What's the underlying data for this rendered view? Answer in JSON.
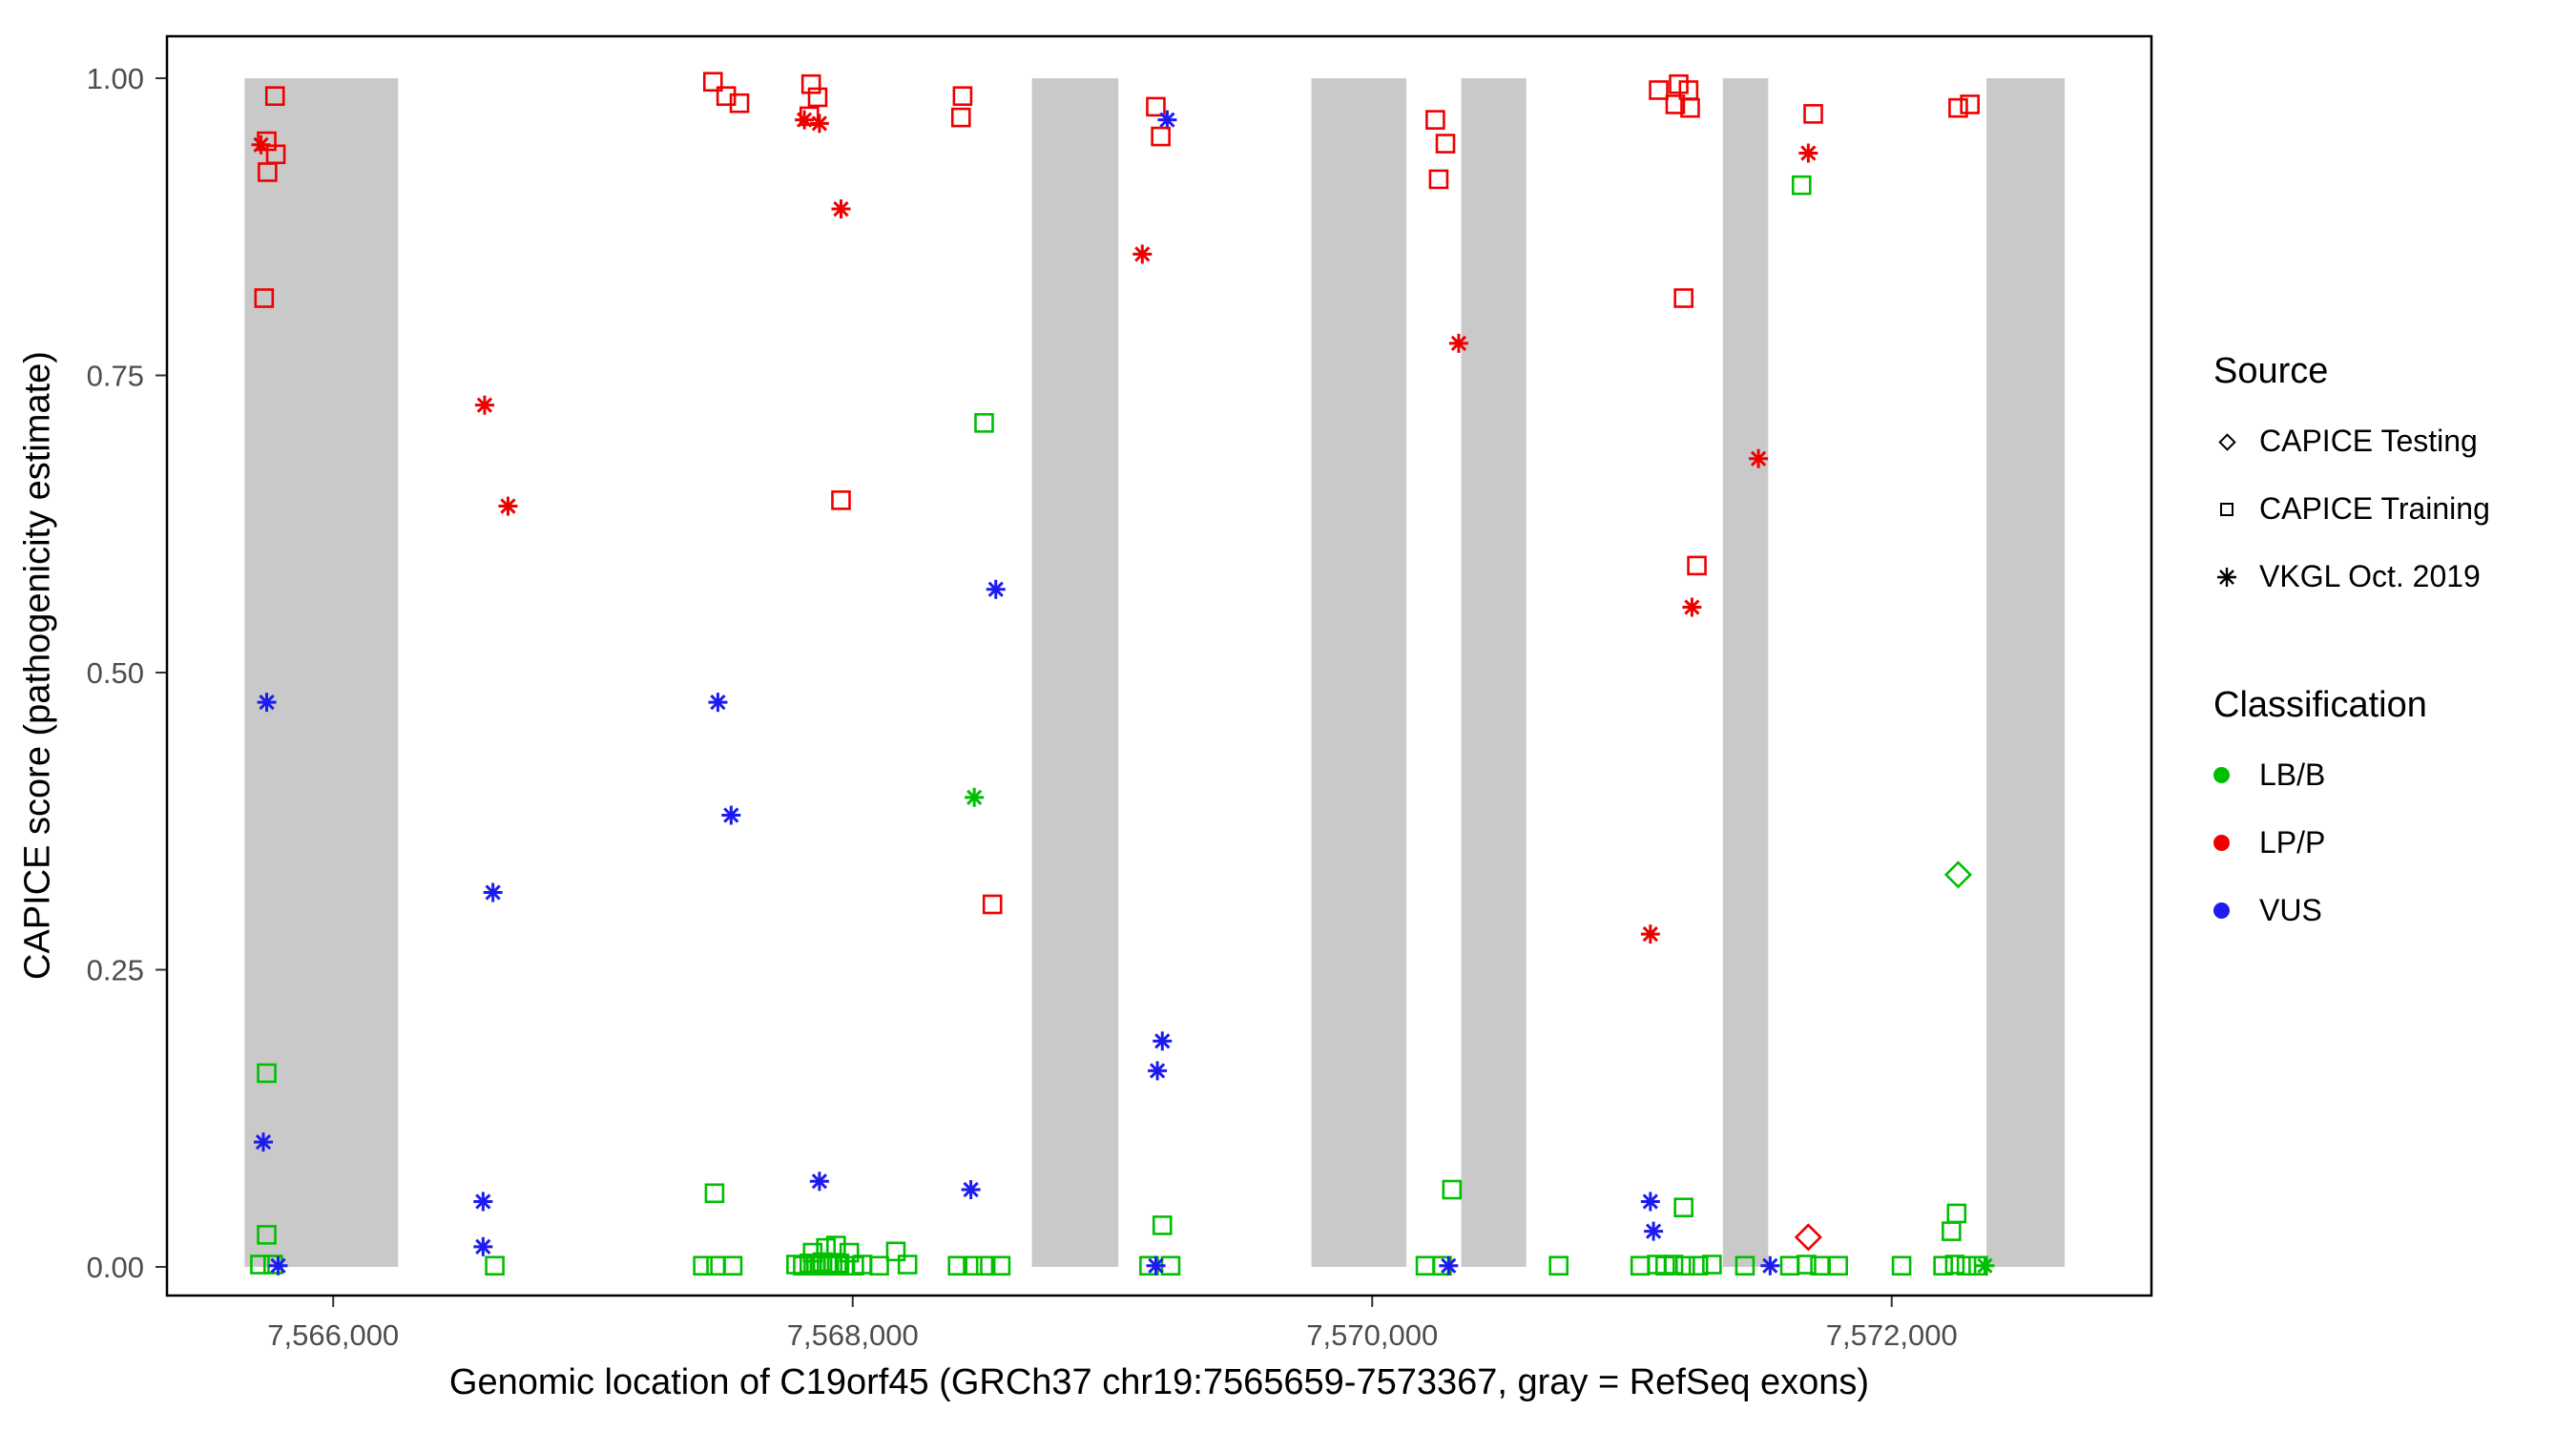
{
  "legend": {
    "source": {
      "title": "Source",
      "items": [
        {
          "label": "CAPICE Testing",
          "marker": "diamond"
        },
        {
          "label": "CAPICE Training",
          "marker": "square"
        },
        {
          "label": "VKGL Oct. 2019",
          "marker": "asterisk"
        }
      ]
    },
    "classification": {
      "title": "Classification",
      "items": [
        {
          "label": "LB/B",
          "class": "LB"
        },
        {
          "label": "LP/P",
          "class": "LP"
        },
        {
          "label": "VUS",
          "class": "VUS"
        }
      ]
    }
  },
  "chart_data": {
    "type": "scatter",
    "title": "",
    "xlabel": "Genomic location of C19orf45 (GRCh37 chr19:7565659-7573367, gray = RefSeq exons)",
    "ylabel": "CAPICE score (pathogenicity estimate)",
    "xlim": [
      7565360,
      7573000
    ],
    "ylim": [
      0,
      1
    ],
    "grid": false,
    "legend_position": "right",
    "x_ticks": [
      {
        "value": 7566000,
        "label": "7,566,000"
      },
      {
        "value": 7568000,
        "label": "7,568,000"
      },
      {
        "value": 7570000,
        "label": "7,570,000"
      },
      {
        "value": 7572000,
        "label": "7,572,000"
      }
    ],
    "y_ticks": [
      {
        "value": 0.0,
        "label": "0.00"
      },
      {
        "value": 0.25,
        "label": "0.25"
      },
      {
        "value": 0.5,
        "label": "0.50"
      },
      {
        "value": 0.75,
        "label": "0.75"
      },
      {
        "value": 1.0,
        "label": "1.00"
      }
    ],
    "exon_band_color": "#C9C9C9",
    "exons": [
      [
        7565659,
        7566250
      ],
      [
        7568690,
        7569023
      ],
      [
        7569766,
        7570132
      ],
      [
        7570343,
        7570593
      ],
      [
        7571350,
        7571525
      ],
      [
        7572365,
        7572666
      ]
    ],
    "colors": {
      "LB": "#00BF00",
      "LP": "#EF0000",
      "VUS": "#1C1CF0"
    },
    "markers": {
      "testing": "diamond",
      "training": "square",
      "vkgl": "asterisk"
    },
    "points": [
      [
        7565776,
        0.985,
        "training",
        "LP"
      ],
      [
        7565744,
        0.947,
        "training",
        "LP"
      ],
      [
        7565722,
        0.944,
        "vkgl",
        "LP"
      ],
      [
        7565779,
        0.936,
        "training",
        "LP"
      ],
      [
        7565747,
        0.921,
        "training",
        "LP"
      ],
      [
        7565734,
        0.815,
        "training",
        "LP"
      ],
      [
        7565744,
        0.475,
        "vkgl",
        "VUS"
      ],
      [
        7565744,
        0.163,
        "training",
        "LB"
      ],
      [
        7565731,
        0.105,
        "vkgl",
        "VUS"
      ],
      [
        7565744,
        0.027,
        "training",
        "LB"
      ],
      [
        7565718,
        0.002,
        "training",
        "LB"
      ],
      [
        7565769,
        0.002,
        "training",
        "LB"
      ],
      [
        7565788,
        0.001,
        "vkgl",
        "VUS"
      ],
      [
        7566583,
        0.725,
        "vkgl",
        "LP"
      ],
      [
        7566673,
        0.64,
        "vkgl",
        "LP"
      ],
      [
        7566615,
        0.315,
        "vkgl",
        "VUS"
      ],
      [
        7566577,
        0.055,
        "vkgl",
        "VUS"
      ],
      [
        7566577,
        0.017,
        "vkgl",
        "VUS"
      ],
      [
        7566622,
        0.001,
        "training",
        "LB"
      ],
      [
        7567462,
        0.997,
        "training",
        "LP"
      ],
      [
        7567513,
        0.985,
        "training",
        "LP"
      ],
      [
        7567564,
        0.979,
        "training",
        "LP"
      ],
      [
        7567481,
        0.475,
        "vkgl",
        "VUS"
      ],
      [
        7567532,
        0.38,
        "vkgl",
        "VUS"
      ],
      [
        7567468,
        0.062,
        "training",
        "LB"
      ],
      [
        7567423,
        0.001,
        "training",
        "LB"
      ],
      [
        7567474,
        0.001,
        "training",
        "LB"
      ],
      [
        7567538,
        0.001,
        "training",
        "LB"
      ],
      [
        7567840,
        0.995,
        "training",
        "LP"
      ],
      [
        7567865,
        0.984,
        "training",
        "LP"
      ],
      [
        7567833,
        0.968,
        "training",
        "LP"
      ],
      [
        7567814,
        0.965,
        "vkgl",
        "LP"
      ],
      [
        7567872,
        0.962,
        "vkgl",
        "LP"
      ],
      [
        7567955,
        0.89,
        "vkgl",
        "LP"
      ],
      [
        7567955,
        0.645,
        "training",
        "LP"
      ],
      [
        7567872,
        0.072,
        "vkgl",
        "VUS"
      ],
      [
        7567782,
        0.002,
        "training",
        "LB"
      ],
      [
        7567808,
        0.001,
        "training",
        "LB"
      ],
      [
        7567833,
        0.003,
        "training",
        "LB"
      ],
      [
        7567846,
        0.012,
        "training",
        "LB"
      ],
      [
        7567859,
        0.002,
        "training",
        "LB"
      ],
      [
        7567872,
        0.001,
        "training",
        "LB"
      ],
      [
        7567884,
        0.004,
        "training",
        "LB"
      ],
      [
        7567897,
        0.016,
        "training",
        "LB"
      ],
      [
        7567910,
        0.002,
        "training",
        "LB"
      ],
      [
        7567923,
        0.001,
        "training",
        "LB"
      ],
      [
        7567936,
        0.018,
        "training",
        "LB"
      ],
      [
        7567949,
        0.003,
        "training",
        "LB"
      ],
      [
        7567968,
        0.001,
        "training",
        "LB"
      ],
      [
        7567987,
        0.012,
        "training",
        "LB"
      ],
      [
        7568006,
        0.001,
        "training",
        "LB"
      ],
      [
        7568038,
        0.002,
        "training",
        "LB"
      ],
      [
        7568102,
        0.001,
        "training",
        "LB"
      ],
      [
        7568166,
        0.013,
        "training",
        "LB"
      ],
      [
        7568211,
        0.002,
        "training",
        "LB"
      ],
      [
        7568423,
        0.985,
        "training",
        "LP"
      ],
      [
        7568417,
        0.967,
        "training",
        "LP"
      ],
      [
        7568506,
        0.71,
        "training",
        "LB"
      ],
      [
        7568551,
        0.57,
        "vkgl",
        "VUS"
      ],
      [
        7568468,
        0.395,
        "vkgl",
        "LB"
      ],
      [
        7568538,
        0.305,
        "training",
        "LP"
      ],
      [
        7568455,
        0.065,
        "vkgl",
        "VUS"
      ],
      [
        7568404,
        0.001,
        "training",
        "LB"
      ],
      [
        7568462,
        0.001,
        "training",
        "LB"
      ],
      [
        7568512,
        0.001,
        "training",
        "LB"
      ],
      [
        7568570,
        0.001,
        "training",
        "LB"
      ],
      [
        7569167,
        0.976,
        "training",
        "LP"
      ],
      [
        7569211,
        0.965,
        "vkgl",
        "VUS"
      ],
      [
        7569186,
        0.951,
        "training",
        "LP"
      ],
      [
        7569115,
        0.852,
        "vkgl",
        "LP"
      ],
      [
        7569192,
        0.19,
        "vkgl",
        "VUS"
      ],
      [
        7569173,
        0.165,
        "vkgl",
        "VUS"
      ],
      [
        7569192,
        0.035,
        "training",
        "LB"
      ],
      [
        7569141,
        0.001,
        "training",
        "LB"
      ],
      [
        7569224,
        0.001,
        "training",
        "LB"
      ],
      [
        7569167,
        0.001,
        "vkgl",
        "VUS"
      ],
      [
        7570243,
        0.965,
        "training",
        "LP"
      ],
      [
        7570282,
        0.945,
        "training",
        "LP"
      ],
      [
        7570256,
        0.915,
        "training",
        "LP"
      ],
      [
        7570333,
        0.777,
        "vkgl",
        "LP"
      ],
      [
        7570307,
        0.065,
        "training",
        "LB"
      ],
      [
        7570205,
        0.001,
        "training",
        "LB"
      ],
      [
        7570269,
        0.001,
        "training",
        "LB"
      ],
      [
        7570294,
        0.001,
        "vkgl",
        "VUS"
      ],
      [
        7570718,
        0.001,
        "training",
        "LB"
      ],
      [
        7571103,
        0.99,
        "training",
        "LP"
      ],
      [
        7571180,
        0.995,
        "training",
        "LP"
      ],
      [
        7571218,
        0.99,
        "training",
        "LP"
      ],
      [
        7571167,
        0.978,
        "training",
        "LP"
      ],
      [
        7571224,
        0.975,
        "training",
        "LP"
      ],
      [
        7571199,
        0.815,
        "training",
        "LP"
      ],
      [
        7571250,
        0.59,
        "training",
        "LP"
      ],
      [
        7571231,
        0.555,
        "vkgl",
        "LP"
      ],
      [
        7571071,
        0.28,
        "vkgl",
        "LP"
      ],
      [
        7571071,
        0.055,
        "vkgl",
        "VUS"
      ],
      [
        7571083,
        0.03,
        "vkgl",
        "VUS"
      ],
      [
        7571199,
        0.05,
        "training",
        "LB"
      ],
      [
        7571032,
        0.001,
        "training",
        "LB"
      ],
      [
        7571096,
        0.002,
        "training",
        "LB"
      ],
      [
        7571128,
        0.001,
        "training",
        "LB"
      ],
      [
        7571160,
        0.002,
        "training",
        "LB"
      ],
      [
        7571205,
        0.001,
        "training",
        "LB"
      ],
      [
        7571256,
        0.001,
        "training",
        "LB"
      ],
      [
        7571308,
        0.002,
        "training",
        "LB"
      ],
      [
        7571487,
        0.68,
        "vkgl",
        "LP"
      ],
      [
        7571532,
        0.001,
        "vkgl",
        "VUS"
      ],
      [
        7571698,
        0.97,
        "training",
        "LP"
      ],
      [
        7571679,
        0.937,
        "vkgl",
        "LP"
      ],
      [
        7571653,
        0.91,
        "training",
        "LB"
      ],
      [
        7571679,
        0.025,
        "testing",
        "LP"
      ],
      [
        7571435,
        0.001,
        "training",
        "LB"
      ],
      [
        7571608,
        0.001,
        "training",
        "LB"
      ],
      [
        7571672,
        0.002,
        "training",
        "LB"
      ],
      [
        7571724,
        0.001,
        "training",
        "LB"
      ],
      [
        7571794,
        0.001,
        "training",
        "LB"
      ],
      [
        7572256,
        0.975,
        "training",
        "LP"
      ],
      [
        7572301,
        0.978,
        "training",
        "LP"
      ],
      [
        7572256,
        0.33,
        "testing",
        "LB"
      ],
      [
        7572250,
        0.045,
        "training",
        "LB"
      ],
      [
        7572230,
        0.03,
        "training",
        "LB"
      ],
      [
        7572038,
        0.001,
        "training",
        "LB"
      ],
      [
        7572198,
        0.001,
        "training",
        "LB"
      ],
      [
        7572243,
        0.002,
        "training",
        "LB"
      ],
      [
        7572288,
        0.001,
        "training",
        "LB"
      ],
      [
        7572333,
        0.001,
        "training",
        "LB"
      ],
      [
        7572359,
        0.001,
        "vkgl",
        "LB"
      ]
    ]
  }
}
